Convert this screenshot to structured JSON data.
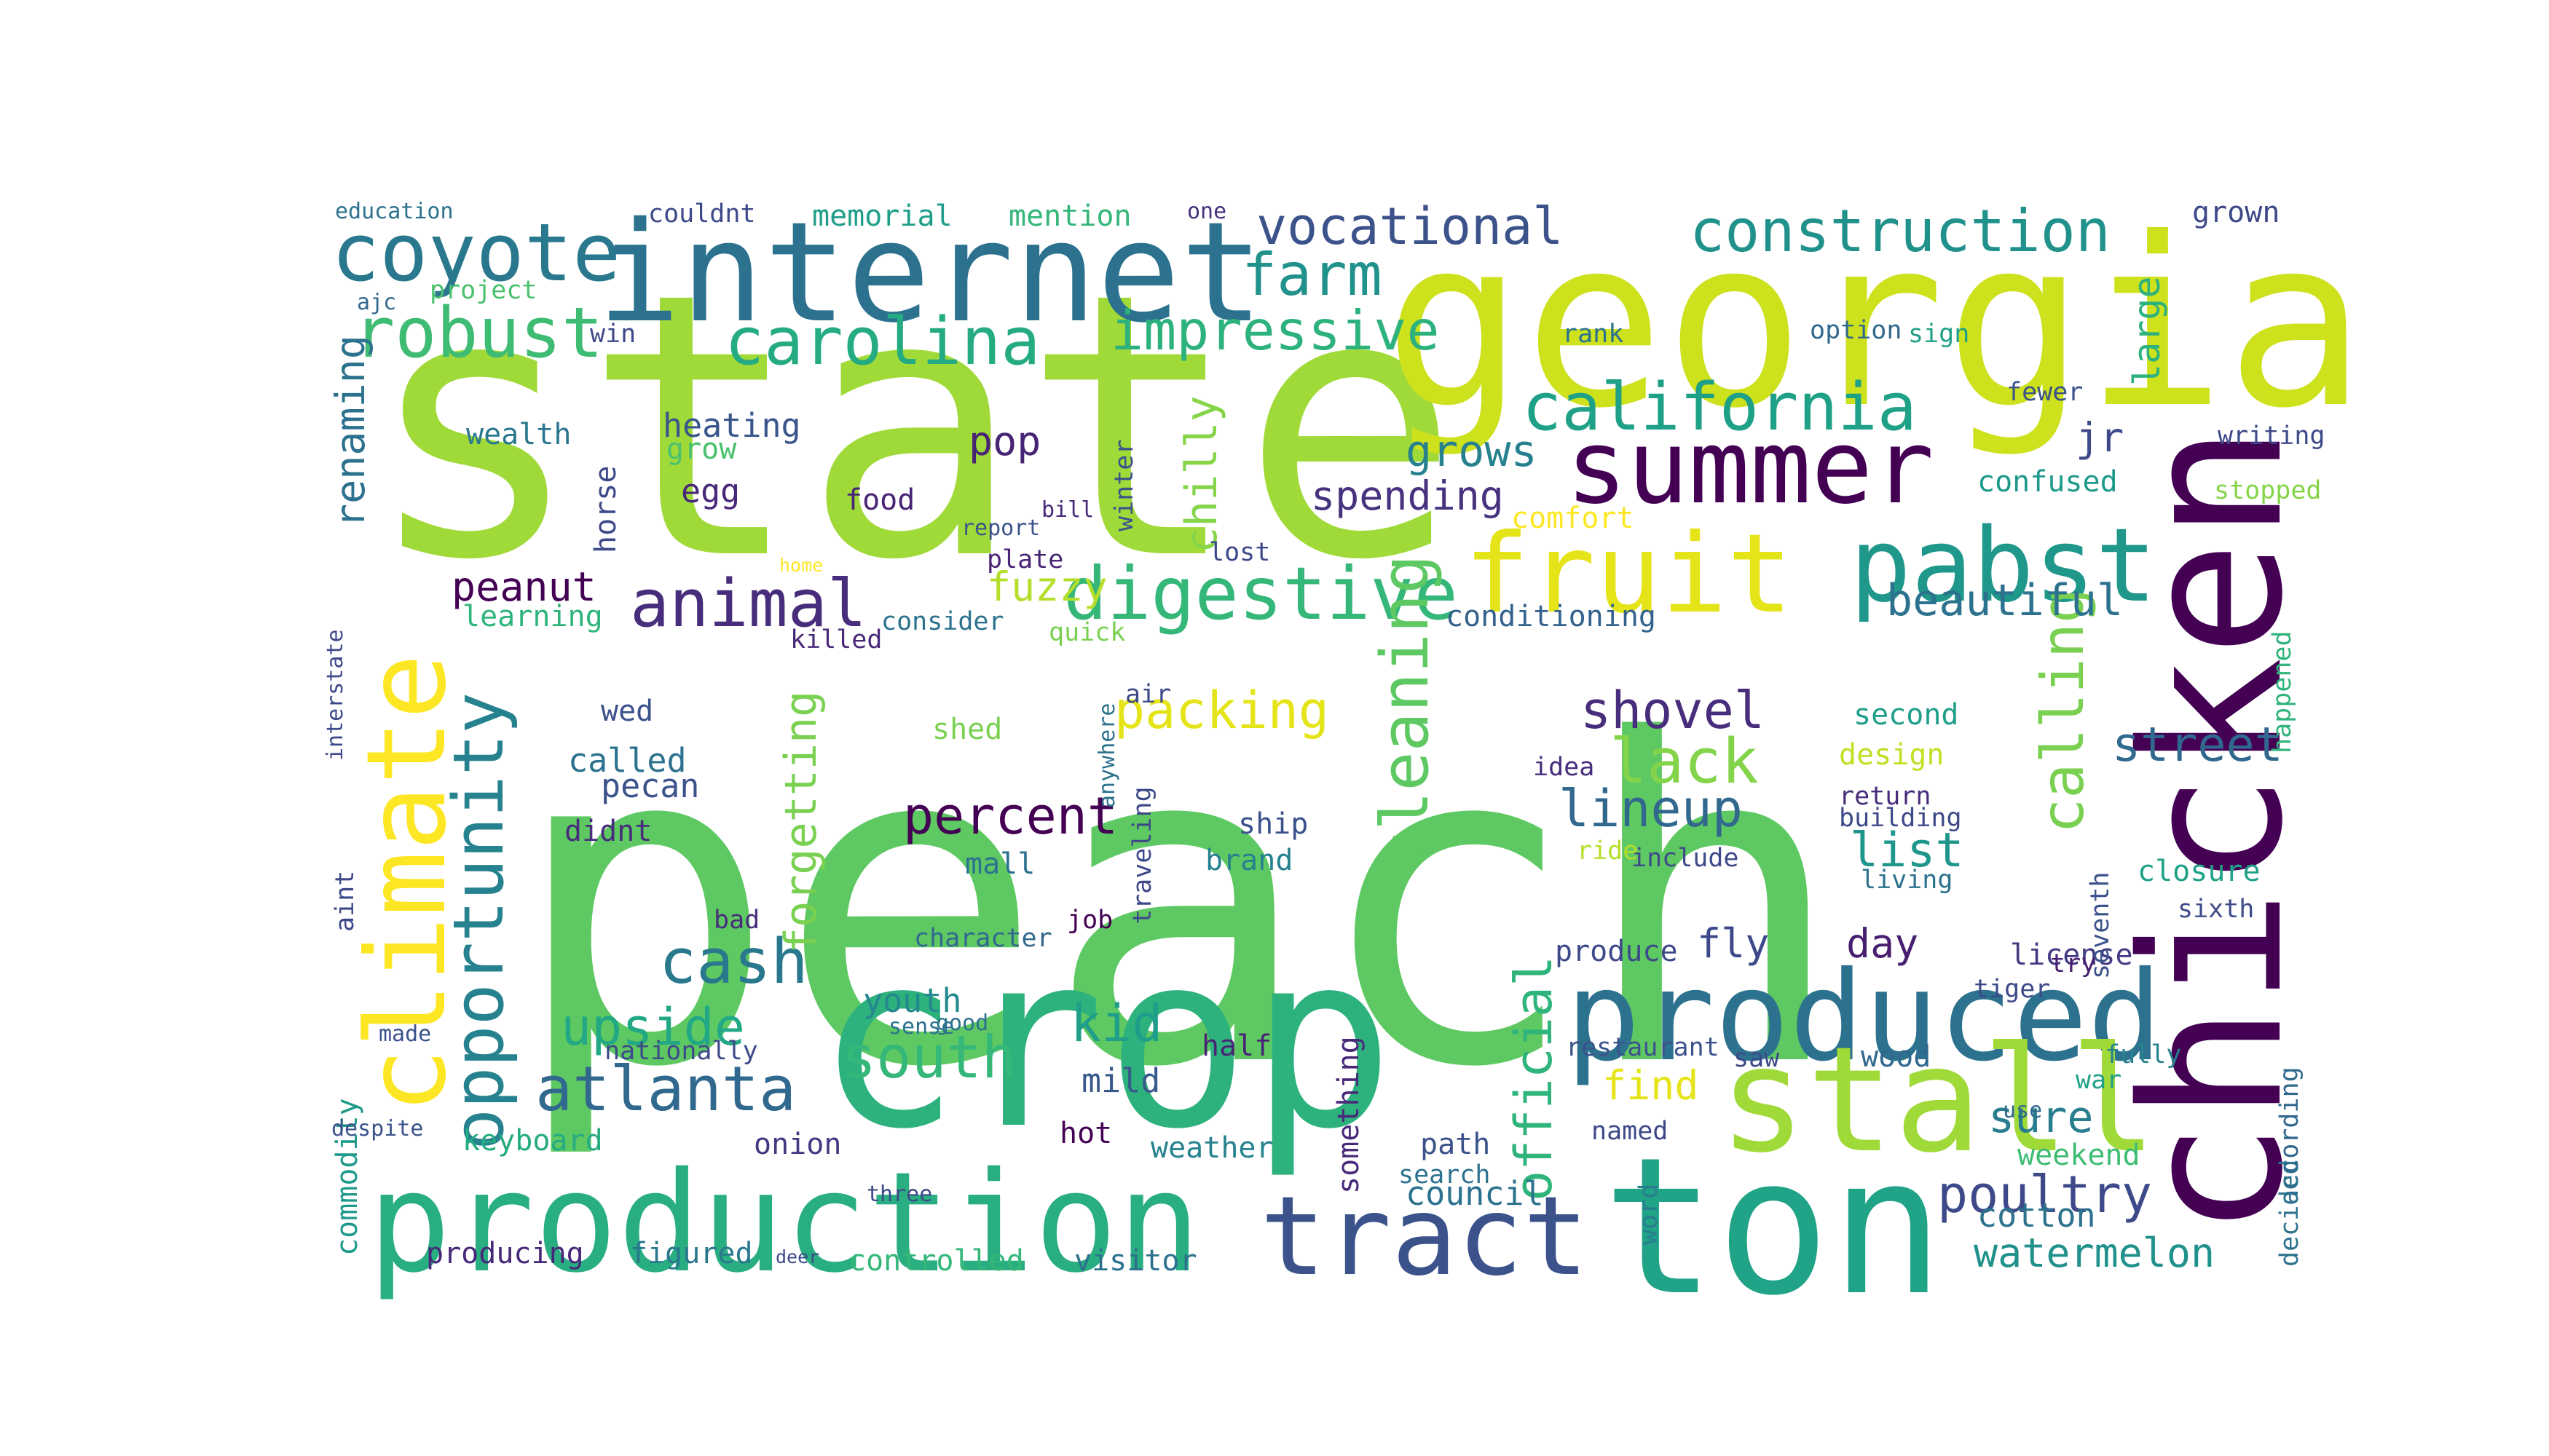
{
  "words": [
    {
      "text": "peach",
      "color": "#5ec962"
    },
    {
      "text": "state",
      "color": "#a0da39"
    },
    {
      "text": "georgia",
      "color": "#cde11d"
    },
    {
      "text": "crop",
      "color": "#2db27d"
    },
    {
      "text": "chicken",
      "color": "#440154"
    },
    {
      "text": "internet",
      "color": "#2c728e"
    },
    {
      "text": "production",
      "color": "#28ae80"
    },
    {
      "text": "ton",
      "color": "#20a386"
    },
    {
      "text": "summer",
      "color": "#440154"
    },
    {
      "text": "produced",
      "color": "#2c728e"
    },
    {
      "text": "climate",
      "color": "#fde725"
    },
    {
      "text": "stall",
      "color": "#a0da39"
    },
    {
      "text": "fruit",
      "color": "#e5e419"
    },
    {
      "text": "pabst",
      "color": "#1f988b"
    },
    {
      "text": "tract",
      "color": "#3b528b"
    },
    {
      "text": "coyote",
      "color": "#2a788e"
    },
    {
      "text": "digestive",
      "color": "#35b779"
    },
    {
      "text": "carolina",
      "color": "#25ab82"
    },
    {
      "text": "robust",
      "color": "#3fbc73"
    },
    {
      "text": "opportunity",
      "color": "#26828e"
    },
    {
      "text": "california",
      "color": "#1fa187"
    },
    {
      "text": "construction",
      "color": "#21918c"
    },
    {
      "text": "animal",
      "color": "#472d7b"
    },
    {
      "text": "atlanta",
      "color": "#31688e"
    },
    {
      "text": "cash",
      "color": "#2a788e"
    },
    {
      "text": "south",
      "color": "#35b779"
    },
    {
      "text": "farm",
      "color": "#21918c"
    },
    {
      "text": "impressive",
      "color": "#2db27d"
    },
    {
      "text": "vocational",
      "color": "#3b528b"
    },
    {
      "text": "cleaning",
      "color": "#5ec962"
    },
    {
      "text": "calling",
      "color": "#7ad151"
    },
    {
      "text": "lack",
      "color": "#84d44b"
    },
    {
      "text": "shovel",
      "color": "#472d7b"
    },
    {
      "text": "lineup",
      "color": "#31688e"
    },
    {
      "text": "official",
      "color": "#2fb47c"
    },
    {
      "text": "poultry",
      "color": "#3e4989"
    },
    {
      "text": "upside",
      "color": "#22a884"
    },
    {
      "text": "kid",
      "color": "#1f9e89"
    },
    {
      "text": "percent",
      "color": "#440154"
    },
    {
      "text": "packing",
      "color": "#e5e419"
    },
    {
      "text": "beautiful",
      "color": "#2c728e"
    },
    {
      "text": "street",
      "color": "#31688e"
    },
    {
      "text": "list",
      "color": "#1f968b"
    },
    {
      "text": "sure",
      "color": "#287d8e"
    },
    {
      "text": "watermelon",
      "color": "#21918c"
    },
    {
      "text": "grows",
      "color": "#27808e"
    },
    {
      "text": "spending",
      "color": "#46327e"
    },
    {
      "text": "renaming",
      "color": "#2c728e"
    },
    {
      "text": "peanut",
      "color": "#440154"
    },
    {
      "text": "fuzzy",
      "color": "#b5de2b"
    },
    {
      "text": "pop",
      "color": "#482475"
    },
    {
      "text": "forgetting",
      "color": "#7ad151"
    },
    {
      "text": "chilly",
      "color": "#86d549"
    },
    {
      "text": "find",
      "color": "#e5e419"
    },
    {
      "text": "fly",
      "color": "#3e4989"
    },
    {
      "text": "day",
      "color": "#481f70"
    },
    {
      "text": "youth",
      "color": "#23898e"
    },
    {
      "text": "mild",
      "color": "#38598c"
    },
    {
      "text": "produce",
      "color": "#3e4989"
    },
    {
      "text": "conditioning",
      "color": "#33638d"
    },
    {
      "text": "comfort",
      "color": "#fde725"
    },
    {
      "text": "confused",
      "color": "#1f9a8a"
    },
    {
      "text": "jr",
      "color": "#3e4989"
    },
    {
      "text": "large",
      "color": "#2db27d"
    },
    {
      "text": "grown",
      "color": "#3e4989"
    },
    {
      "text": "memorial",
      "color": "#1f9e89"
    },
    {
      "text": "mention",
      "color": "#34b679"
    },
    {
      "text": "council",
      "color": "#2c728e"
    },
    {
      "text": "weekend",
      "color": "#3fbc73"
    },
    {
      "text": "cotton",
      "color": "#2c728e"
    },
    {
      "text": "license",
      "color": "#443a83"
    },
    {
      "text": "closure",
      "color": "#1fa187"
    },
    {
      "text": "design",
      "color": "#c2df23"
    },
    {
      "text": "second",
      "color": "#1f9e89"
    },
    {
      "text": "wood",
      "color": "#31688e"
    },
    {
      "text": "called",
      "color": "#2c728e"
    },
    {
      "text": "pecan",
      "color": "#3b528b"
    },
    {
      "text": "didnt",
      "color": "#472d7b"
    },
    {
      "text": "wed",
      "color": "#3b528b"
    },
    {
      "text": "heating",
      "color": "#39568c"
    },
    {
      "text": "grow",
      "color": "#4ac16d"
    },
    {
      "text": "egg",
      "color": "#482878"
    },
    {
      "text": "food",
      "color": "#482475"
    },
    {
      "text": "horse",
      "color": "#3e4989"
    },
    {
      "text": "wealth",
      "color": "#2a788e"
    },
    {
      "text": "learning",
      "color": "#2fb47c"
    },
    {
      "text": "keyboard",
      "color": "#25ab82"
    },
    {
      "text": "commodity",
      "color": "#1f9a8a"
    },
    {
      "text": "producing",
      "color": "#482878"
    },
    {
      "text": "figured",
      "color": "#2a788e"
    },
    {
      "text": "controlled",
      "color": "#35b779"
    },
    {
      "text": "visitor",
      "color": "#2c728e"
    },
    {
      "text": "onion",
      "color": "#453781"
    },
    {
      "text": "hot",
      "color": "#440154"
    },
    {
      "text": "weather",
      "color": "#26828e"
    },
    {
      "text": "path",
      "color": "#3b528b"
    },
    {
      "text": "search",
      "color": "#2c728e"
    },
    {
      "text": "half",
      "color": "#482475"
    },
    {
      "text": "brand",
      "color": "#26828e"
    },
    {
      "text": "ship",
      "color": "#3b528b"
    },
    {
      "text": "mall",
      "color": "#2c728e"
    },
    {
      "text": "shed",
      "color": "#7ad151"
    },
    {
      "text": "project",
      "color": "#4ac16d"
    },
    {
      "text": "win",
      "color": "#3e4989"
    },
    {
      "text": "couldnt",
      "color": "#3e4989"
    },
    {
      "text": "education",
      "color": "#2c728e"
    },
    {
      "text": "ajc",
      "color": "#31688e"
    },
    {
      "text": "rank",
      "color": "#2c728e"
    },
    {
      "text": "option",
      "color": "#31688e"
    },
    {
      "text": "sign",
      "color": "#1fa187"
    },
    {
      "text": "writing",
      "color": "#3e4989"
    },
    {
      "text": "stopped",
      "color": "#86d549"
    },
    {
      "text": "happened",
      "color": "#2fb47c"
    },
    {
      "text": "according",
      "color": "#31688e"
    },
    {
      "text": "decided",
      "color": "#2c728e"
    },
    {
      "text": "fewer",
      "color": "#3b528b"
    },
    {
      "text": "winter",
      "color": "#3b528b"
    },
    {
      "text": "lost",
      "color": "#3e4989"
    },
    {
      "text": "seventh",
      "color": "#3b528b"
    },
    {
      "text": "sixth",
      "color": "#3e4989"
    },
    {
      "text": "return",
      "color": "#472d7b"
    },
    {
      "text": "building",
      "color": "#3e4989"
    },
    {
      "text": "living",
      "color": "#2c728e"
    },
    {
      "text": "ride",
      "color": "#b5de2b"
    },
    {
      "text": "include",
      "color": "#3e4989"
    },
    {
      "text": "idea",
      "color": "#472d7b"
    },
    {
      "text": "restaurant",
      "color": "#3b528b"
    },
    {
      "text": "saw",
      "color": "#3e4989"
    },
    {
      "text": "named",
      "color": "#3e4989"
    },
    {
      "text": "word",
      "color": "#287d8e"
    },
    {
      "text": "sense",
      "color": "#2c728e"
    },
    {
      "text": "good",
      "color": "#2c728e"
    },
    {
      "text": "character",
      "color": "#31688e"
    },
    {
      "text": "job",
      "color": "#440154"
    },
    {
      "text": "fully",
      "color": "#26828e"
    },
    {
      "text": "tiger",
      "color": "#3e4989"
    },
    {
      "text": "try",
      "color": "#481f70"
    },
    {
      "text": "war",
      "color": "#1fa187"
    },
    {
      "text": "use",
      "color": "#31688e"
    },
    {
      "text": "something",
      "color": "#482878"
    },
    {
      "text": "nationally",
      "color": "#3e4989"
    },
    {
      "text": "despite",
      "color": "#3b528b"
    },
    {
      "text": "made",
      "color": "#3b528b"
    },
    {
      "text": "aint",
      "color": "#3e4989"
    },
    {
      "text": "interstate",
      "color": "#3e4989"
    },
    {
      "text": "consider",
      "color": "#2c728e"
    },
    {
      "text": "killed",
      "color": "#482878"
    },
    {
      "text": "quick",
      "color": "#7ad151"
    },
    {
      "text": "plate",
      "color": "#482475"
    },
    {
      "text": "report",
      "color": "#3b528b"
    },
    {
      "text": "bill",
      "color": "#482878"
    },
    {
      "text": "one",
      "color": "#46327e"
    },
    {
      "text": "air",
      "color": "#3e4989"
    },
    {
      "text": "anywhere",
      "color": "#2c728e"
    },
    {
      "text": "traveling",
      "color": "#3e4989"
    },
    {
      "text": "bad",
      "color": "#472d7b"
    },
    {
      "text": "three",
      "color": "#3e4989"
    },
    {
      "text": "home",
      "color": "#fde725"
    },
    {
      "text": "deer",
      "color": "#3e4989"
    }
  ]
}
